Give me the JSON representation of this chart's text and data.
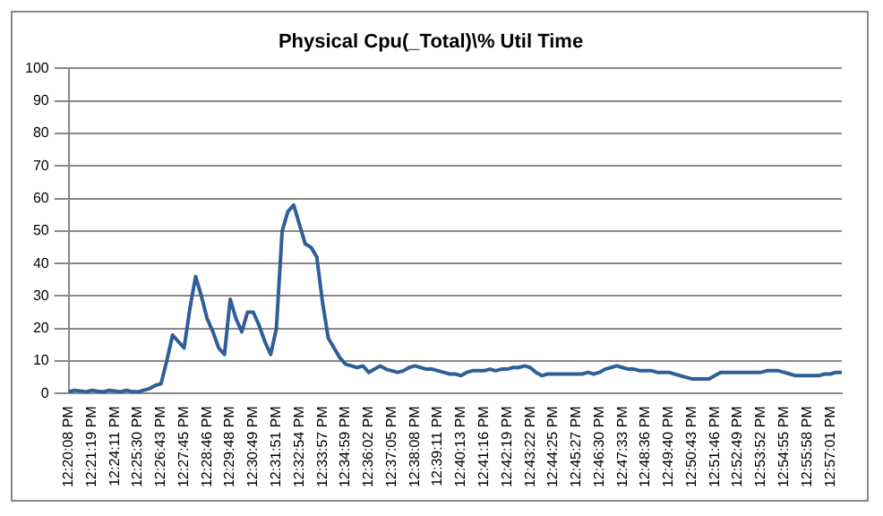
{
  "chart_data": {
    "type": "line",
    "title": "Physical Cpu(_Total)\\% Util Time",
    "categories": [
      "12:20:08 PM",
      null,
      null,
      null,
      "12:21:19 PM",
      null,
      null,
      null,
      "12:24:11 PM",
      null,
      null,
      null,
      "12:25:30 PM",
      null,
      null,
      null,
      "12:26:43 PM",
      null,
      null,
      null,
      "12:27:45 PM",
      null,
      null,
      null,
      "12:28:46 PM",
      null,
      null,
      null,
      "12:29:48 PM",
      null,
      null,
      null,
      "12:30:49 PM",
      null,
      null,
      null,
      "12:31:51 PM",
      null,
      null,
      null,
      "12:32:54 PM",
      null,
      null,
      null,
      "12:33:57 PM",
      null,
      null,
      null,
      "12:34:59 PM",
      null,
      null,
      null,
      "12:36:02 PM",
      null,
      null,
      null,
      "12:37:05 PM",
      null,
      null,
      null,
      "12:38:08 PM",
      null,
      null,
      null,
      "12:39:11 PM",
      null,
      null,
      null,
      "12:40:13 PM",
      null,
      null,
      null,
      "12:41:16 PM",
      null,
      null,
      null,
      "12:42:19 PM",
      null,
      null,
      null,
      "12:43:22 PM",
      null,
      null,
      null,
      "12:44:25 PM",
      null,
      null,
      null,
      "12:45:27 PM",
      null,
      null,
      null,
      "12:46:30 PM",
      null,
      null,
      null,
      "12:47:33 PM",
      null,
      null,
      null,
      "12:48:36 PM",
      null,
      null,
      null,
      "12:49:40 PM",
      null,
      null,
      null,
      "12:50:43 PM",
      null,
      null,
      null,
      "12:51:46 PM",
      null,
      null,
      null,
      "12:52:49 PM",
      null,
      null,
      null,
      "12:53:52 PM",
      null,
      null,
      null,
      "12:54:55 PM",
      null,
      null,
      null,
      "12:55:58 PM",
      null,
      null,
      null,
      "12:57:01 PM",
      null,
      null
    ],
    "series": [
      {
        "color": "#2f5f98",
        "values": [
          0.5,
          1,
          0.8,
          0.5,
          1,
          0.7,
          0.5,
          1,
          0.8,
          0.5,
          1,
          0.6,
          0.5,
          1,
          1.5,
          2.5,
          3,
          10,
          18,
          16,
          14,
          26,
          36,
          30,
          23,
          19,
          14,
          12,
          29,
          23,
          19,
          25,
          25,
          21,
          16,
          12,
          20,
          50,
          56,
          58,
          52,
          46,
          45,
          42,
          28,
          17,
          14,
          11,
          9,
          8.5,
          8,
          8.5,
          6.5,
          7.5,
          8.5,
          7.5,
          7,
          6.5,
          7,
          8,
          8.5,
          8,
          7.5,
          7.5,
          7,
          6.5,
          6,
          6,
          5.5,
          6.5,
          7,
          7,
          7,
          7.5,
          7,
          7.5,
          7.5,
          8,
          8,
          8.5,
          8,
          6.5,
          5.5,
          6,
          6,
          6,
          6,
          6,
          6,
          6,
          6.5,
          6,
          6.5,
          7.5,
          8,
          8.5,
          8,
          7.5,
          7.5,
          7,
          7,
          7,
          6.5,
          6.5,
          6.5,
          6,
          5.5,
          5,
          4.5,
          4.5,
          4.5,
          4.5,
          5.5,
          6.5,
          6.5,
          6.5,
          6.5,
          6.5,
          6.5,
          6.5,
          6.5,
          7,
          7,
          7,
          6.5,
          6,
          5.5,
          5.5,
          5.5,
          5.5,
          5.5,
          6,
          6,
          6.5,
          6.5
        ]
      }
    ],
    "ylim": [
      0,
      100
    ],
    "yticks": [
      0,
      10,
      20,
      30,
      40,
      50,
      60,
      70,
      80,
      90,
      100
    ],
    "grid": "y",
    "legend": false,
    "marker": "none",
    "line_style": "solid"
  }
}
